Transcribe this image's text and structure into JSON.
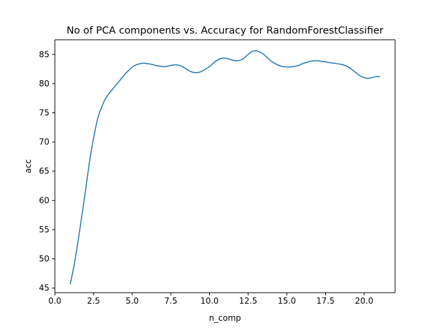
{
  "chart_data": {
    "type": "line",
    "title": "No of PCA components vs. Accuracy for RandomForestClassifier",
    "xlabel": "n_comp",
    "ylabel": "acc",
    "xlim": [
      0,
      22
    ],
    "ylim": [
      44.2,
      87.5
    ],
    "xticks": [
      0.0,
      2.5,
      5.0,
      7.5,
      10.0,
      12.5,
      15.0,
      17.5,
      20.0
    ],
    "xtick_labels": [
      "0.0",
      "2.5",
      "5.0",
      "7.5",
      "10.0",
      "12.5",
      "15.0",
      "17.5",
      "20.0"
    ],
    "yticks": [
      45,
      50,
      55,
      60,
      65,
      70,
      75,
      80,
      85
    ],
    "ytick_labels": [
      "45",
      "50",
      "55",
      "60",
      "65",
      "70",
      "75",
      "80",
      "85"
    ],
    "grid": false,
    "series": [
      {
        "color": "#1f77b4",
        "x": [
          1.0,
          1.25,
          1.5,
          1.75,
          2.0,
          2.25,
          2.5,
          2.75,
          3.0,
          3.25,
          3.5,
          3.75,
          4.0,
          4.25,
          4.5,
          4.75,
          5.0,
          5.25,
          5.5,
          5.75,
          6.0,
          6.25,
          6.5,
          6.75,
          7.0,
          7.25,
          7.5,
          7.75,
          8.0,
          8.25,
          8.5,
          8.75,
          9.0,
          9.25,
          9.5,
          9.75,
          10.0,
          10.25,
          10.5,
          10.75,
          11.0,
          11.25,
          11.5,
          11.75,
          12.0,
          12.25,
          12.5,
          12.75,
          13.0,
          13.25,
          13.5,
          13.75,
          14.0,
          14.25,
          14.5,
          14.75,
          15.0,
          15.25,
          15.5,
          15.75,
          16.0,
          16.25,
          16.5,
          16.75,
          17.0,
          17.25,
          17.5,
          17.75,
          18.0,
          18.25,
          18.5,
          18.75,
          19.0,
          19.25,
          19.5,
          19.75,
          20.0,
          20.25,
          20.5,
          20.75,
          21.0
        ],
        "values": [
          45.7,
          49.0,
          53.0,
          57.5,
          62.0,
          66.8,
          70.6,
          73.8,
          75.8,
          77.3,
          78.3,
          79.1,
          79.9,
          80.7,
          81.5,
          82.2,
          82.8,
          83.2,
          83.4,
          83.5,
          83.4,
          83.3,
          83.1,
          83.0,
          82.9,
          82.95,
          83.1,
          83.2,
          83.15,
          82.9,
          82.5,
          82.1,
          81.9,
          81.9,
          82.1,
          82.5,
          82.9,
          83.5,
          84.0,
          84.3,
          84.35,
          84.2,
          84.0,
          83.9,
          84.0,
          84.4,
          85.0,
          85.5,
          85.6,
          85.4,
          85.0,
          84.4,
          83.8,
          83.4,
          83.1,
          82.9,
          82.85,
          82.85,
          82.95,
          83.1,
          83.4,
          83.6,
          83.8,
          83.9,
          83.9,
          83.8,
          83.7,
          83.6,
          83.5,
          83.4,
          83.3,
          83.1,
          82.8,
          82.3,
          81.8,
          81.3,
          81.0,
          80.9,
          81.0,
          81.2,
          81.2
        ]
      }
    ]
  }
}
